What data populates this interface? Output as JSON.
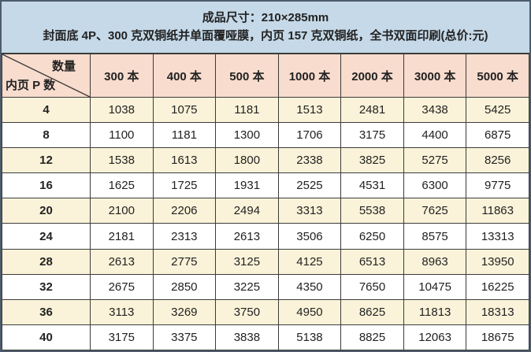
{
  "header": {
    "line1": "成品尺寸：210×285mm",
    "line2": "封面底 4P、300 克双铜纸并单面覆哑膜，内页 157 克双铜纸，全书双面印刷(总价:元)"
  },
  "table": {
    "corner": {
      "top_right": "数量",
      "bottom_left": "内页 P 数"
    },
    "columns": [
      "300 本",
      "400 本",
      "500 本",
      "1000 本",
      "2000 本",
      "3000 本",
      "5000 本"
    ],
    "rows": [
      {
        "p": "4",
        "values": [
          "1038",
          "1075",
          "1181",
          "1513",
          "2481",
          "3438",
          "5425"
        ]
      },
      {
        "p": "8",
        "values": [
          "1100",
          "1181",
          "1300",
          "1706",
          "3175",
          "4400",
          "6875"
        ]
      },
      {
        "p": "12",
        "values": [
          "1538",
          "1613",
          "1800",
          "2338",
          "3825",
          "5275",
          "8256"
        ]
      },
      {
        "p": "16",
        "values": [
          "1625",
          "1725",
          "1931",
          "2525",
          "4531",
          "6300",
          "9775"
        ]
      },
      {
        "p": "20",
        "values": [
          "2100",
          "2206",
          "2494",
          "3313",
          "5538",
          "7625",
          "11863"
        ]
      },
      {
        "p": "24",
        "values": [
          "2181",
          "2313",
          "2613",
          "3506",
          "6250",
          "8575",
          "13313"
        ]
      },
      {
        "p": "28",
        "values": [
          "2613",
          "2775",
          "3125",
          "4125",
          "6513",
          "8963",
          "13950"
        ]
      },
      {
        "p": "32",
        "values": [
          "2675",
          "2850",
          "3225",
          "4350",
          "7650",
          "10475",
          "16225"
        ]
      },
      {
        "p": "36",
        "values": [
          "3113",
          "3269",
          "3750",
          "4950",
          "8625",
          "11813",
          "18313"
        ]
      },
      {
        "p": "40",
        "values": [
          "3175",
          "3375",
          "3838",
          "5138",
          "8825",
          "12063",
          "18675"
        ]
      }
    ]
  },
  "colors": {
    "top_header_bg": "#c5d9e8",
    "column_header_bg": "#f8dccd",
    "stripe_row_bg": "#fbf3d9",
    "plain_row_bg": "#ffffff",
    "inner_border": "#3b3b3b",
    "outer_border": "#4d5c6b",
    "text": "#222222"
  }
}
